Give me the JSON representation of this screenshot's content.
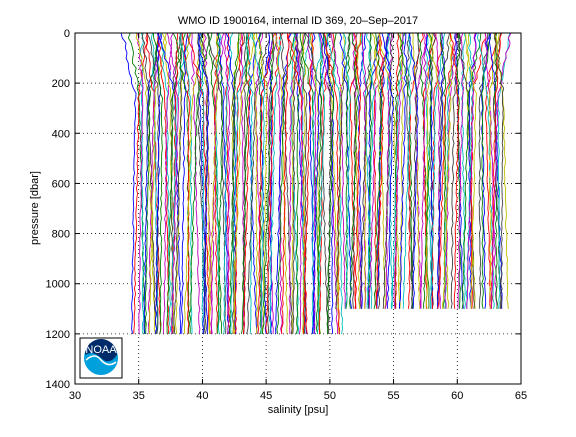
{
  "chart_data": {
    "type": "line",
    "title": "WMO ID 1900164, internal ID 369, 20–Sep–2017",
    "xlabel": "salinity [psu]",
    "ylabel": "pressure [dbar]",
    "xlim": [
      30,
      65
    ],
    "ylim": [
      0,
      1400
    ],
    "y_reversed": true,
    "grid": true,
    "x_ticks": [
      "30",
      "35",
      "40",
      "45",
      "50",
      "55",
      "60",
      "65"
    ],
    "y_ticks": [
      "0",
      "200",
      "400",
      "600",
      "800",
      "1000",
      "1200",
      "1400"
    ],
    "series_colors": [
      "#0000ff",
      "#008000",
      "#ff0000",
      "#00bfbf",
      "#bf00bf",
      "#bfbf00",
      "#404040"
    ],
    "profile_count": 210,
    "profile_start_salinity": 34.8,
    "profile_spacing_psu": 0.138,
    "profile_max_pressure_dbar": [
      1200,
      1200,
      1200,
      1100,
      1100
    ],
    "logo_icon": "noaa-logo-icon",
    "logo_text": "NOAA"
  }
}
